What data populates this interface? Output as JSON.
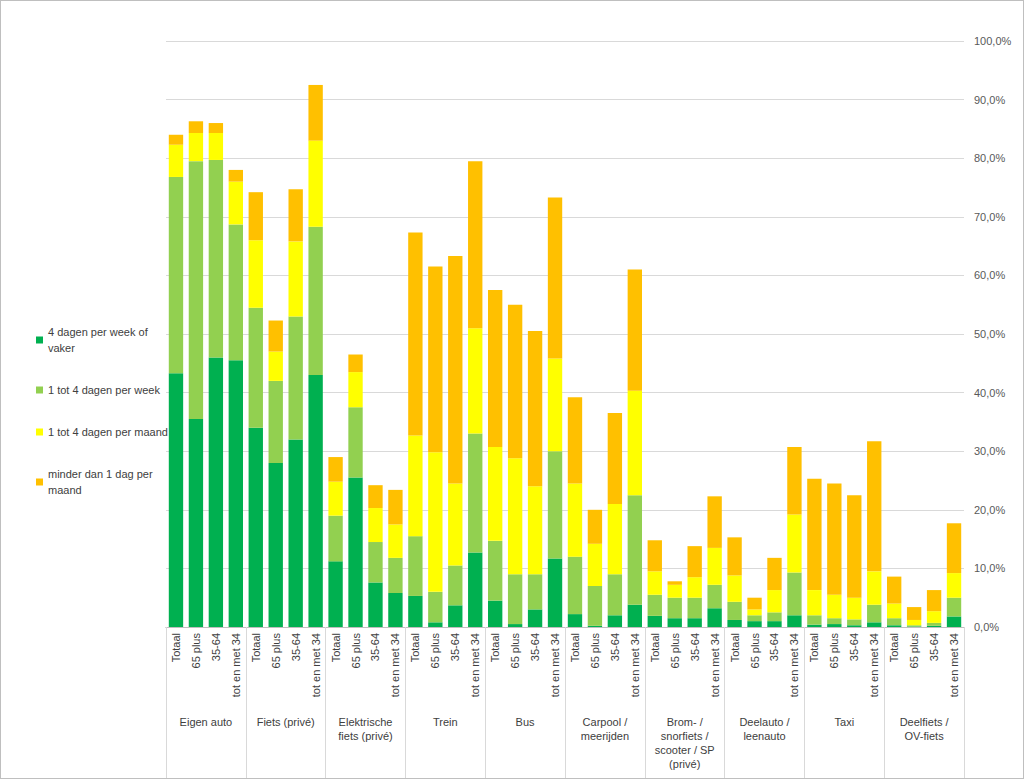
{
  "chart_data": {
    "type": "bar",
    "stacked": true,
    "grid": true,
    "legend": "left",
    "categories": [
      "Totaal",
      "65 plus",
      "35-64",
      "tot en met 34",
      "Totaal",
      "65 plus",
      "35-64",
      "tot en met 34",
      "Totaal",
      "65 plus",
      "35-64",
      "tot en met 34",
      "Totaal",
      "65 plus",
      "35-64",
      "tot en met 34",
      "Totaal",
      "65 plus",
      "35-64",
      "tot en met 34",
      "Totaal",
      "65 plus",
      "35-64",
      "tot en met 34",
      "Totaal",
      "65 plus",
      "35-64",
      "tot en met 34",
      "Totaal",
      "65 plus",
      "35-64",
      "tot en met 34",
      "Totaal",
      "65 plus",
      "35-64",
      "tot en met 34",
      "Totaal",
      "65 plus",
      "35-64",
      "tot en met 34"
    ],
    "groups": [
      "Eigen auto",
      "Fiets (privé)",
      "Elektrische\nfiets (privé)",
      "Trein",
      "Bus",
      "Carpool /\nmeerijden",
      "Brom- /\nsnorfiets /\nscooter / SP\n(privé)",
      "Deelauto /\nleenauto",
      "Taxi",
      "Deelfiets /\nOV-fiets"
    ],
    "series": [
      {
        "name": "4 dagen per week of vaker",
        "color": "#00B050",
        "values": [
          43.3,
          35.5,
          46.0,
          45.5,
          34.0,
          28.0,
          32.0,
          43.0,
          11.2,
          25.5,
          7.6,
          5.8,
          5.3,
          0.8,
          3.7,
          12.7,
          4.5,
          0.5,
          3.0,
          11.7,
          2.2,
          0.2,
          2.0,
          3.8,
          1.9,
          1.5,
          1.5,
          3.2,
          1.2,
          1.0,
          1.0,
          2.0,
          0.4,
          0.5,
          0.3,
          0.8,
          0.3,
          0.1,
          0.2,
          1.8
        ]
      },
      {
        "name": "1 tot 4 dagen per week",
        "color": "#92D050",
        "values": [
          33.5,
          44.0,
          33.7,
          23.2,
          20.5,
          14.0,
          21.0,
          25.3,
          7.8,
          12.0,
          6.9,
          6.0,
          10.2,
          5.2,
          6.8,
          20.3,
          10.2,
          8.5,
          6.0,
          18.3,
          9.8,
          6.8,
          7.0,
          18.7,
          3.6,
          3.5,
          3.5,
          4.0,
          3.1,
          1.0,
          1.5,
          7.3,
          1.6,
          1.0,
          1.0,
          3.0,
          1.2,
          0.2,
          0.5,
          3.2
        ]
      },
      {
        "name": "1 tot 4 dagen per maand",
        "color": "#FFFF00",
        "values": [
          5.5,
          4.8,
          4.6,
          7.3,
          11.5,
          5.0,
          12.8,
          14.7,
          5.8,
          6.0,
          5.8,
          5.7,
          17.2,
          23.8,
          14.0,
          18.0,
          16.0,
          19.8,
          15.0,
          15.8,
          12.5,
          7.2,
          12.0,
          17.8,
          4.0,
          2.2,
          3.5,
          6.3,
          4.5,
          1.0,
          3.8,
          9.9,
          4.3,
          4.0,
          3.7,
          5.7,
          2.5,
          0.9,
          2.0,
          4.2
        ]
      },
      {
        "name": "minder dan 1 dag per maand",
        "color": "#FFC000",
        "values": [
          1.7,
          2.0,
          1.7,
          2.0,
          8.2,
          5.3,
          8.9,
          9.5,
          4.2,
          3.0,
          3.9,
          5.9,
          34.6,
          31.7,
          38.8,
          28.5,
          26.8,
          26.2,
          26.5,
          27.5,
          14.7,
          5.8,
          15.5,
          20.7,
          5.3,
          0.6,
          5.3,
          8.8,
          6.5,
          2.0,
          5.5,
          11.5,
          19.0,
          19.0,
          17.5,
          22.2,
          4.6,
          2.2,
          3.6,
          8.5
        ]
      }
    ],
    "ylim": [
      0,
      100
    ],
    "yticks": [
      {
        "value": 0,
        "label": "0,0%"
      },
      {
        "value": 10,
        "label": "10,0%"
      },
      {
        "value": 20,
        "label": "20,0%"
      },
      {
        "value": 30,
        "label": "30,0%"
      },
      {
        "value": 40,
        "label": "40,0%"
      },
      {
        "value": 50,
        "label": "50,0%"
      },
      {
        "value": 60,
        "label": "60,0%"
      },
      {
        "value": 70,
        "label": "70,0%"
      },
      {
        "value": 80,
        "label": "80,0%"
      },
      {
        "value": 90,
        "label": "90,0%"
      },
      {
        "value": 100,
        "label": "100,0%"
      }
    ]
  }
}
